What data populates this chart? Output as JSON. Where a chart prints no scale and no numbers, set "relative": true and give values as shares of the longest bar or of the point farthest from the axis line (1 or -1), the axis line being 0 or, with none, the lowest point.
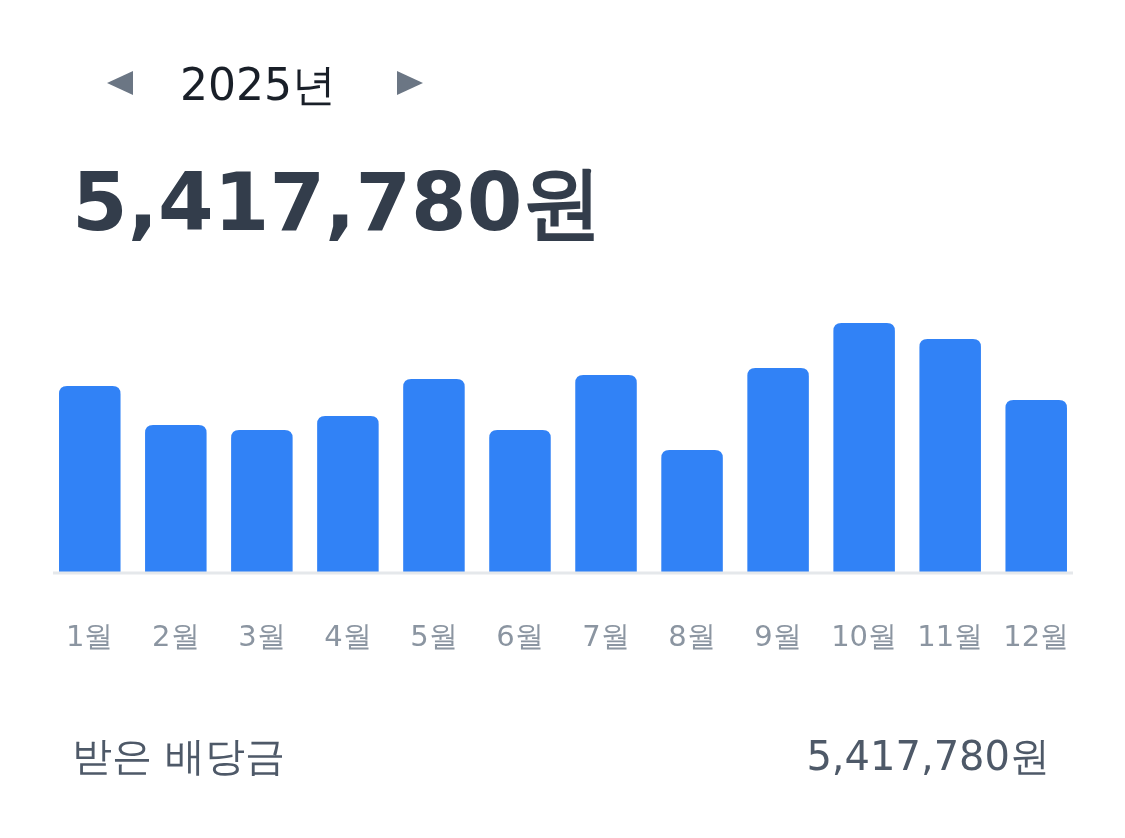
{
  "chart_data": {
    "type": "bar",
    "title": "2025년",
    "subtitle": "5,417,780원",
    "categories": [
      "1월",
      "2월",
      "3월",
      "4월",
      "5월",
      "6월",
      "7월",
      "8월",
      "9월",
      "10월",
      "11월",
      "12월"
    ],
    "values": [
      0.747,
      0.59,
      0.57,
      0.627,
      0.775,
      0.57,
      0.791,
      0.49,
      0.819,
      1,
      0.936,
      0.691
    ],
    "color": "#3182f6",
    "relative": true,
    "annotations": [
      "받은 배당금",
      "5,417,780원"
    ]
  }
}
